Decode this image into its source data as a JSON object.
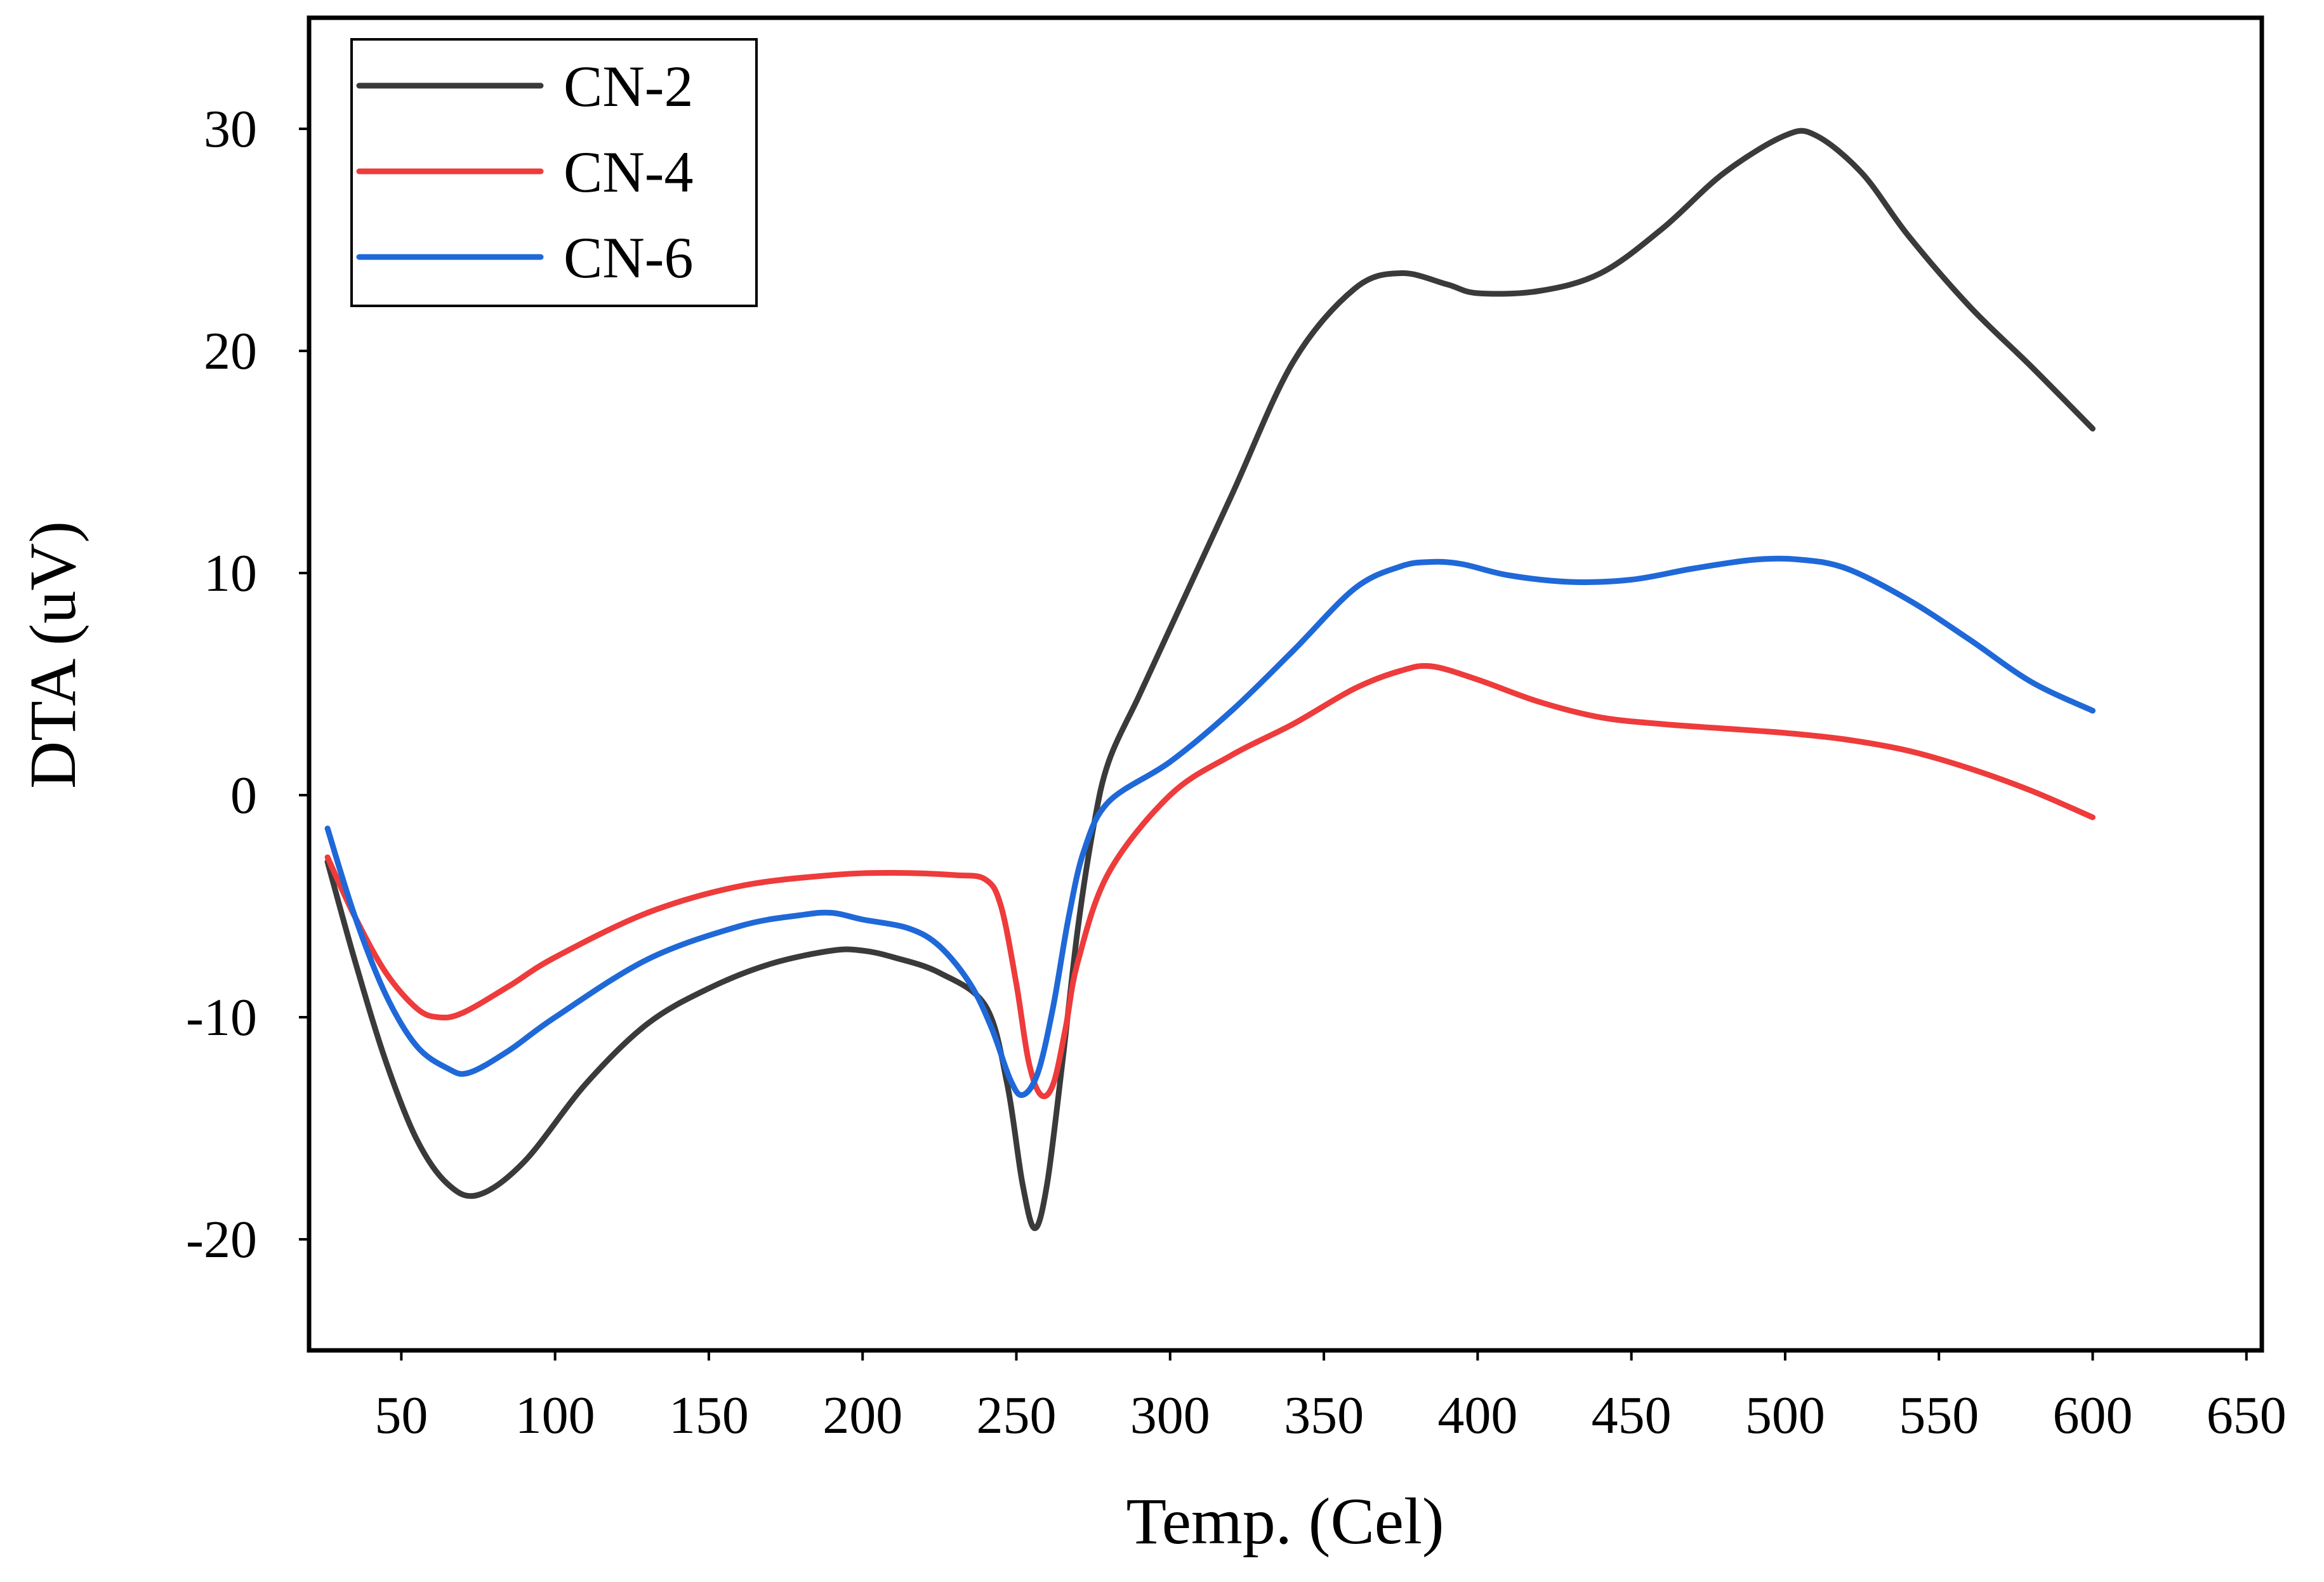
{
  "chart_data": {
    "type": "line",
    "title": "",
    "xlabel": "Temp. (Cel)",
    "ylabel": "DTA (uV)",
    "xlim": [
      20,
      655
    ],
    "ylim": [
      -25,
      35
    ],
    "xticks": [
      50,
      100,
      150,
      200,
      250,
      300,
      350,
      400,
      450,
      500,
      550,
      600,
      650
    ],
    "yticks": [
      30,
      20,
      10,
      0,
      -10,
      -20
    ],
    "xtick_labels": [
      "50",
      "100",
      "150",
      "200",
      "250",
      "300",
      "350",
      "400",
      "450",
      "500",
      "550",
      "600",
      "650"
    ],
    "ytick_labels": [
      "30",
      "20",
      "10",
      "0",
      "-10",
      "-20"
    ],
    "grid": false,
    "legend_position": "top-left",
    "series": [
      {
        "name": "CN-2",
        "color": "#3a3a3a",
        "x": [
          26,
          35,
          45,
          55,
          65,
          75,
          90,
          110,
          130,
          150,
          170,
          190,
          200,
          210,
          225,
          240,
          247,
          252,
          256,
          260,
          265,
          270,
          275,
          280,
          290,
          300,
          320,
          340,
          360,
          375,
          390,
          400,
          420,
          440,
          460,
          480,
          500,
          510,
          525,
          540,
          560,
          580,
          600
        ],
        "y": [
          -3,
          -7.5,
          -12,
          -15.5,
          -17.5,
          -18,
          -16.5,
          -13,
          -10.3,
          -8.7,
          -7.6,
          -7,
          -7,
          -7.3,
          -8,
          -9.5,
          -13,
          -17.5,
          -19.5,
          -17.5,
          -12,
          -6,
          -1.5,
          1.5,
          4.5,
          7.5,
          13.5,
          19.5,
          22.8,
          23.5,
          23,
          22.6,
          22.7,
          23.5,
          25.5,
          28,
          29.7,
          29.7,
          28,
          25.2,
          22,
          19.3,
          16.5
        ]
      },
      {
        "name": "CN-4",
        "color": "#ee3b3b",
        "x": [
          26,
          35,
          45,
          55,
          62,
          70,
          85,
          100,
          130,
          160,
          190,
          210,
          230,
          240,
          245,
          250,
          254,
          258,
          262,
          266,
          270,
          280,
          300,
          320,
          340,
          360,
          375,
          385,
          400,
          420,
          440,
          460,
          480,
          500,
          520,
          540,
          560,
          580,
          600
        ],
        "y": [
          -2.8,
          -5.5,
          -8,
          -9.6,
          -10,
          -9.8,
          -8.6,
          -7.3,
          -5.3,
          -4.1,
          -3.6,
          -3.5,
          -3.6,
          -3.8,
          -5,
          -8.5,
          -12,
          -13.5,
          -13,
          -10.5,
          -7.5,
          -3.5,
          0,
          1.8,
          3.2,
          4.8,
          5.6,
          5.8,
          5.2,
          4.2,
          3.5,
          3.2,
          3,
          2.8,
          2.5,
          2,
          1.2,
          0.2,
          -1
        ]
      },
      {
        "name": "CN-6",
        "color": "#1f68d8",
        "x": [
          26,
          35,
          45,
          55,
          65,
          72,
          85,
          100,
          130,
          160,
          180,
          190,
          200,
          215,
          225,
          235,
          242,
          248,
          252,
          257,
          262,
          267,
          272,
          280,
          300,
          320,
          340,
          360,
          375,
          385,
          395,
          410,
          430,
          450,
          470,
          490,
          505,
          520,
          540,
          560,
          580,
          600
        ],
        "y": [
          -1.5,
          -5.5,
          -9,
          -11.3,
          -12.3,
          -12.5,
          -11.5,
          -10,
          -7.4,
          -5.9,
          -5.4,
          -5.3,
          -5.6,
          -6,
          -6.8,
          -8.5,
          -10.5,
          -12.8,
          -13.5,
          -12.5,
          -9.5,
          -5.5,
          -2.5,
          -0.3,
          1.5,
          3.8,
          6.5,
          9.3,
          10.3,
          10.5,
          10.4,
          9.9,
          9.6,
          9.7,
          10.2,
          10.6,
          10.6,
          10.2,
          8.8,
          7,
          5.1,
          3.8
        ]
      }
    ]
  }
}
